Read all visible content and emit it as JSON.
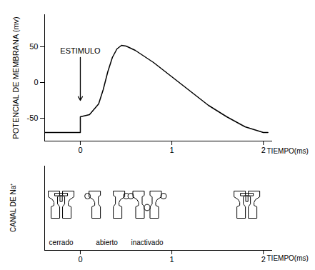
{
  "chart_data": [
    {
      "type": "line",
      "x": [
        -0.39,
        0,
        0,
        0.1,
        0.2,
        0.25,
        0.3,
        0.35,
        0.4,
        0.45,
        0.5,
        0.6,
        0.8,
        1.0,
        1.2,
        1.4,
        1.6,
        1.8,
        2.0,
        2.05
      ],
      "values": [
        -70,
        -70,
        -48,
        -45,
        -30,
        -10,
        15,
        35,
        47,
        52,
        51,
        45,
        28,
        8,
        -12,
        -32,
        -48,
        -62,
        -70,
        -70
      ],
      "color": "#000000",
      "xlim": [
        -0.39,
        2.1
      ],
      "ylim": [
        -82,
        95
      ],
      "xticks": [
        0,
        1,
        2
      ],
      "yticks": [
        50,
        0,
        -50
      ],
      "x_label": "TIEMPO(ms)",
      "y_label": "POTENCIAL DE MEMBRANA (mv)",
      "annotations": [
        {
          "text": "ESTIMULO",
          "x": 0,
          "y_start": 35,
          "y_end": -25
        }
      ]
    },
    {
      "type": "scatter",
      "x": [
        -0.21,
        0.29,
        0.73,
        1.82
      ],
      "states": [
        "cerrado",
        "abierto",
        "inactivado",
        "cerrado"
      ],
      "state_labels": [
        {
          "text": "cerrado",
          "x": -0.21
        },
        {
          "text": "abierto",
          "x": 0.29
        },
        {
          "text": "inactivado",
          "x": 0.73
        }
      ],
      "xlim": [
        -0.39,
        2.1
      ],
      "xticks": [
        0,
        1,
        2
      ],
      "x_label": "TIEMPO(ms)",
      "y_label": "CANAL DE Na⁺",
      "tick_labels": "x"
    }
  ]
}
